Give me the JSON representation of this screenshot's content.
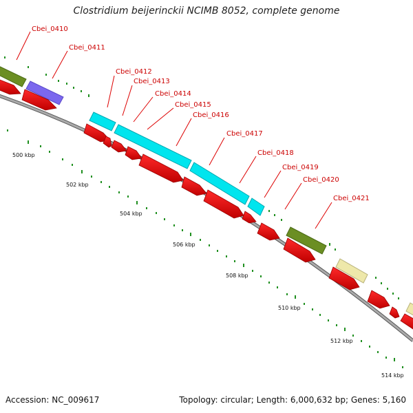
{
  "title": "Clostridium beijerinckii NCIMB 8052, complete genome",
  "footer": {
    "accession": "Accession: NC_009617",
    "topology": "Topology: circular; Length: 6,000,632 bp; Genes: 5,160"
  },
  "colors": {
    "cds": "#ee0000",
    "cds_dark": "#990000",
    "backbone": "#888888",
    "tick": "#1f8f1f",
    "label_line": "#dd0000",
    "olive": "#6b8e23",
    "slate": "#7b68ee",
    "cyan": "#00e5ee",
    "khaki": "#eee8aa"
  },
  "position_labels": [
    "500 kbp",
    "502 kbp",
    "504 kbp",
    "506 kbp",
    "508 kbp",
    "510 kbp",
    "512 kbp",
    "514 kbp"
  ],
  "gene_labels": [
    "Cbei_0410",
    "Cbei_0411",
    "Cbei_0412",
    "Cbei_0413",
    "Cbei_0414",
    "Cbei_0415",
    "Cbei_0416",
    "Cbei_0417",
    "Cbei_0418",
    "Cbei_0419",
    "Cbei_0420",
    "Cbei_0421"
  ]
}
